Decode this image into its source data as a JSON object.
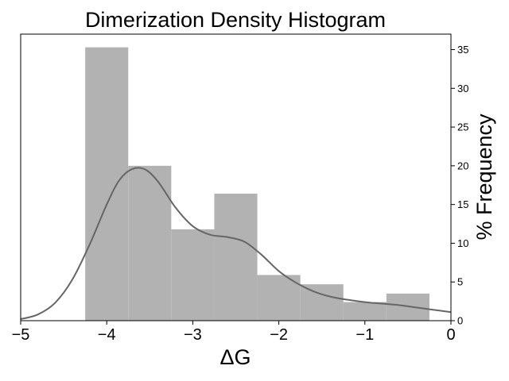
{
  "chart_data": {
    "type": "bar",
    "subtype": "histogram-with-density-curve",
    "title": "Dimerization Density Histogram",
    "xlabel": "ΔG",
    "ylabel": "% Frequency",
    "y_axis_side": "right",
    "xlim": [
      -5,
      0
    ],
    "ylim": [
      0,
      37
    ],
    "xticks": [
      -5,
      -4,
      -3,
      -2,
      -1,
      0
    ],
    "xtick_labels": [
      "−5",
      "−4",
      "−3",
      "−2",
      "−1",
      "0"
    ],
    "yticks": [
      0,
      5,
      10,
      15,
      20,
      25,
      30,
      35
    ],
    "yticks_labels": [
      "0",
      "5",
      "10",
      "15",
      "20",
      "25",
      "30",
      "35"
    ],
    "grid": false,
    "bins": [
      {
        "x0": -4.25,
        "x1": -3.75,
        "value": 35.3
      },
      {
        "x0": -3.75,
        "x1": -3.25,
        "value": 20.0
      },
      {
        "x0": -3.25,
        "x1": -2.75,
        "value": 11.8
      },
      {
        "x0": -2.75,
        "x1": -2.25,
        "value": 16.4
      },
      {
        "x0": -2.25,
        "x1": -1.75,
        "value": 5.9
      },
      {
        "x0": -1.75,
        "x1": -1.25,
        "value": 4.7
      },
      {
        "x0": -1.25,
        "x1": -0.75,
        "value": 2.4
      },
      {
        "x0": -0.75,
        "x1": -0.25,
        "value": 3.5
      }
    ],
    "density_curve": {
      "x": [
        -5.0,
        -4.8,
        -4.6,
        -4.4,
        -4.2,
        -4.0,
        -3.85,
        -3.7,
        -3.55,
        -3.4,
        -3.2,
        -3.0,
        -2.8,
        -2.6,
        -2.4,
        -2.2,
        -2.0,
        -1.8,
        -1.6,
        -1.4,
        -1.2,
        -1.0,
        -0.8,
        -0.6,
        -0.4,
        -0.2,
        0.0
      ],
      "y": [
        0.2,
        0.8,
        2.3,
        5.3,
        9.8,
        15.0,
        18.2,
        19.6,
        19.5,
        17.9,
        14.6,
        12.2,
        11.1,
        10.8,
        10.2,
        8.5,
        6.4,
        4.9,
        3.8,
        3.1,
        2.7,
        2.4,
        2.2,
        2.0,
        1.7,
        1.4,
        1.1
      ]
    },
    "colors": {
      "bars": "#b2b2b2",
      "curve": "#666666",
      "axes": "#000000"
    }
  }
}
